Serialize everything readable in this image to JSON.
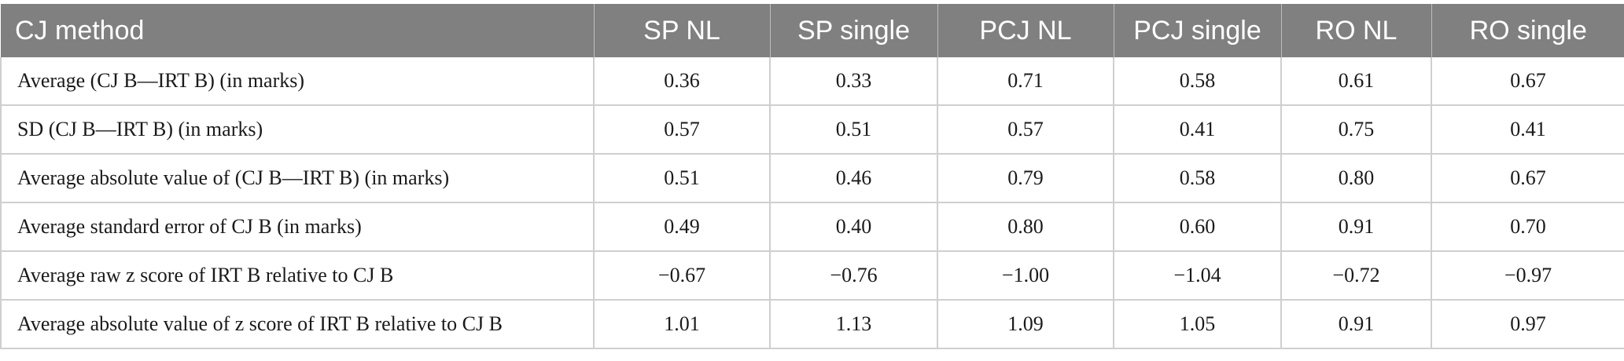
{
  "table": {
    "headers": [
      "CJ method",
      "SP NL",
      "SP single",
      "PCJ NL",
      "PCJ single",
      "RO NL",
      "RO single"
    ],
    "rows": [
      [
        "Average (CJ B—IRT B) (in marks)",
        "0.36",
        "0.33",
        "0.71",
        "0.58",
        "0.61",
        "0.67"
      ],
      [
        "SD (CJ B—IRT B) (in marks)",
        "0.57",
        "0.51",
        "0.57",
        "0.41",
        "0.75",
        "0.41"
      ],
      [
        "Average absolute value of (CJ B—IRT B) (in marks)",
        "0.51",
        "0.46",
        "0.79",
        "0.58",
        "0.80",
        "0.67"
      ],
      [
        "Average standard error of CJ B (in marks)",
        "0.49",
        "0.40",
        "0.80",
        "0.60",
        "0.91",
        "0.70"
      ],
      [
        "Average raw z score of IRT B relative to CJ B",
        "−0.67",
        "−0.76",
        "−1.00",
        "−1.04",
        "−0.72",
        "−0.97"
      ],
      [
        "Average absolute value of z score of IRT B relative to CJ B",
        "1.01",
        "1.13",
        "1.09",
        "1.05",
        "0.91",
        "0.97"
      ]
    ]
  },
  "colors": {
    "header_bg": "#808080",
    "header_text": "#ffffff",
    "grid": "#cfcfcf"
  }
}
